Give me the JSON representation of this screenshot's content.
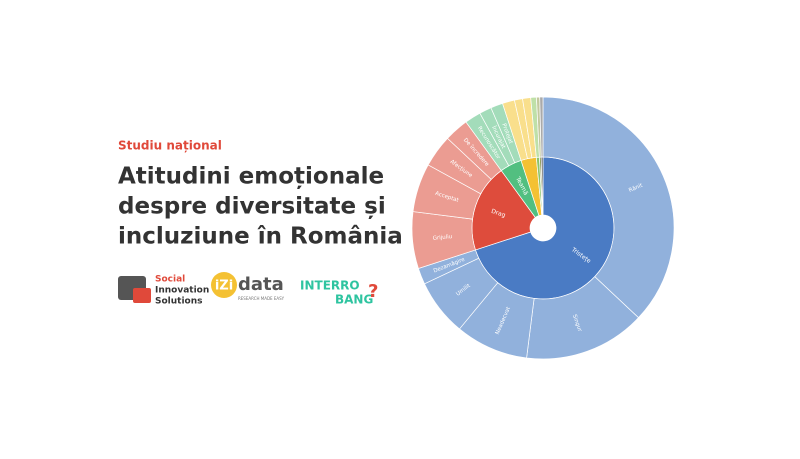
{
  "chart_data": {
    "type": "sunburst",
    "kicker": "Studiu național",
    "title_lines": [
      "Atitudini emoționale",
      "despre diversitate și",
      "incluziune în România"
    ],
    "groups": [
      {
        "name": "Tristețe",
        "value": 70,
        "color": "#4a7bc4",
        "child_color": "#91b1dc",
        "children": [
          {
            "name": "Rănit",
            "value": 37
          },
          {
            "name": "Singur",
            "value": 15
          },
          {
            "name": "Neadecvat",
            "value": 9
          },
          {
            "name": "Umilit",
            "value": 7
          },
          {
            "name": "Dezamăgire",
            "value": 2
          }
        ]
      },
      {
        "name": "Drag",
        "value": 20,
        "color": "#de4c3c",
        "child_color": "#eb9c92",
        "children": [
          {
            "name": "Grijuliu",
            "value": 7
          },
          {
            "name": "Acceptat",
            "value": 6
          },
          {
            "name": "Afecțiune",
            "value": 4
          },
          {
            "name": "De încredere",
            "value": 3
          }
        ]
      },
      {
        "name": "Teamă",
        "value": 5,
        "color": "#52bf80",
        "child_color": "#a3dcba",
        "children": [
          {
            "name": "Recunoscător",
            "value": 2
          },
          {
            "name": "Încurajat",
            "value": 1.5
          },
          {
            "name": "Protejat",
            "value": 1.5
          }
        ]
      },
      {
        "name": null,
        "value": 3.5,
        "color": "#f4c133",
        "child_color": "#f9df8c",
        "children": [
          {
            "name": null,
            "value": 1.5
          },
          {
            "name": null,
            "value": 1
          },
          {
            "name": null,
            "value": 1
          }
        ]
      },
      {
        "name": null,
        "value": 0.7,
        "color": "#8cc46a",
        "child_color": "#bfe0a8",
        "children": [
          {
            "name": null,
            "value": 0.7
          }
        ]
      },
      {
        "name": null,
        "value": 0.4,
        "color": "#8d9a5a",
        "child_color": "#c3c99e",
        "children": [
          {
            "name": null,
            "value": 0.4
          }
        ]
      },
      {
        "name": null,
        "value": 0.4,
        "color": "#555555",
        "child_color": "#aaaaaa",
        "children": [
          {
            "name": null,
            "value": 0.4
          }
        ]
      }
    ]
  },
  "logos": {
    "sis": [
      "Social",
      "Innovation",
      "Solutions"
    ],
    "izi": "iZi",
    "izi_word": "data",
    "izi_tag": "RESEARCH MADE EASY",
    "interro": "INTERRO",
    "bang": "BANG",
    "bang_mark": "?"
  }
}
